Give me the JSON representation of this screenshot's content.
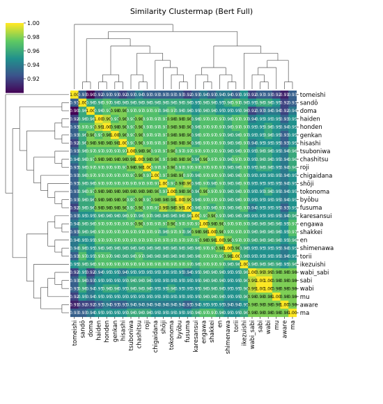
{
  "chart_data": {
    "type": "heatmap",
    "title": "Similarity Clustermap (Bert Full)",
    "labels": [
      "tomeishi",
      "sandō",
      "doma",
      "haiden",
      "honden",
      "genkan",
      "hisashi",
      "tsuboniwa",
      "chashitsu",
      "roji",
      "chigaidana",
      "shōji",
      "tokonoma",
      "byōbu",
      "fusuma",
      "karesansui",
      "engawa",
      "shakkei",
      "en",
      "shimenawa",
      "torii",
      "ikezuishi",
      "wabi_sabi",
      "sabi",
      "wabi",
      "mu",
      "aware",
      "ma"
    ],
    "colorbar": {
      "min": 0.9,
      "max": 1.0,
      "ticks": [
        "0.92",
        "0.94",
        "0.96",
        "0.98",
        "1.00"
      ],
      "colors": [
        "#440154",
        "#3b528b",
        "#21918c",
        "#5ec962",
        "#fde725"
      ]
    },
    "values": [
      [
        1.0,
        0.93,
        0.9,
        0.92,
        0.93,
        0.93,
        0.92,
        0.93,
        0.94,
        0.93,
        0.93,
        0.93,
        0.93,
        0.93,
        0.92,
        0.93,
        0.94,
        0.93,
        0.94,
        0.94,
        0.93,
        0.95,
        0.92,
        0.93,
        0.93,
        0.92,
        0.91,
        0.93
      ],
      [
        0.93,
        1.0,
        0.96,
        0.96,
        0.97,
        0.96,
        0.96,
        0.96,
        0.96,
        0.96,
        0.96,
        0.96,
        0.96,
        0.96,
        0.96,
        0.95,
        0.96,
        0.96,
        0.95,
        0.96,
        0.97,
        0.96,
        0.95,
        0.96,
        0.96,
        0.95,
        0.92,
        0.93
      ],
      [
        0.9,
        0.96,
        1.0,
        0.96,
        0.97,
        0.98,
        0.98,
        0.97,
        0.97,
        0.97,
        0.97,
        0.96,
        0.97,
        0.96,
        0.96,
        0.95,
        0.96,
        0.96,
        0.95,
        0.95,
        0.95,
        0.96,
        0.92,
        0.93,
        0.94,
        0.94,
        0.92,
        0.94
      ],
      [
        0.92,
        0.96,
        0.96,
        1.0,
        0.99,
        0.97,
        0.98,
        0.97,
        0.98,
        0.97,
        0.97,
        0.97,
        0.98,
        0.98,
        0.98,
        0.96,
        0.97,
        0.97,
        0.97,
        0.96,
        0.97,
        0.97,
        0.94,
        0.95,
        0.95,
        0.95,
        0.93,
        0.95
      ],
      [
        0.93,
        0.97,
        0.97,
        0.99,
        1.0,
        0.98,
        0.98,
        0.97,
        0.98,
        0.97,
        0.97,
        0.97,
        0.98,
        0.98,
        0.98,
        0.96,
        0.97,
        0.97,
        0.97,
        0.96,
        0.97,
        0.97,
        0.95,
        0.95,
        0.96,
        0.95,
        0.94,
        0.95
      ],
      [
        0.93,
        0.96,
        0.98,
        0.97,
        0.98,
        1.0,
        0.98,
        0.97,
        0.98,
        0.97,
        0.97,
        0.97,
        0.98,
        0.98,
        0.98,
        0.96,
        0.97,
        0.97,
        0.97,
        0.96,
        0.96,
        0.97,
        0.95,
        0.95,
        0.96,
        0.95,
        0.93,
        0.95
      ],
      [
        0.92,
        0.96,
        0.98,
        0.98,
        0.98,
        0.98,
        1.0,
        0.97,
        0.98,
        0.97,
        0.97,
        0.97,
        0.98,
        0.98,
        0.98,
        0.96,
        0.97,
        0.97,
        0.97,
        0.96,
        0.96,
        0.97,
        0.94,
        0.95,
        0.95,
        0.95,
        0.93,
        0.95
      ],
      [
        0.93,
        0.96,
        0.97,
        0.97,
        0.97,
        0.97,
        0.97,
        1.0,
        0.98,
        0.98,
        0.97,
        0.97,
        0.98,
        0.97,
        0.97,
        0.97,
        0.97,
        0.97,
        0.97,
        0.96,
        0.96,
        0.97,
        0.95,
        0.96,
        0.96,
        0.95,
        0.94,
        0.96
      ],
      [
        0.94,
        0.96,
        0.97,
        0.98,
        0.98,
        0.98,
        0.98,
        0.98,
        1.0,
        0.98,
        0.98,
        0.97,
        0.98,
        0.98,
        0.98,
        0.96,
        0.98,
        0.97,
        0.97,
        0.96,
        0.97,
        0.97,
        0.95,
        0.96,
        0.96,
        0.95,
        0.94,
        0.96
      ],
      [
        0.93,
        0.96,
        0.97,
        0.97,
        0.97,
        0.97,
        0.97,
        0.98,
        0.98,
        1.0,
        0.97,
        0.97,
        0.98,
        0.97,
        0.97,
        0.97,
        0.97,
        0.97,
        0.97,
        0.96,
        0.96,
        0.97,
        0.95,
        0.96,
        0.96,
        0.95,
        0.94,
        0.96
      ],
      [
        0.93,
        0.96,
        0.97,
        0.97,
        0.97,
        0.97,
        0.97,
        0.97,
        0.98,
        0.97,
        1.0,
        0.97,
        0.98,
        0.98,
        0.97,
        0.96,
        0.97,
        0.97,
        0.97,
        0.96,
        0.96,
        0.97,
        0.95,
        0.95,
        0.95,
        0.95,
        0.94,
        0.95
      ],
      [
        0.93,
        0.96,
        0.96,
        0.97,
        0.97,
        0.97,
        0.97,
        0.97,
        0.97,
        0.97,
        0.97,
        1.0,
        0.97,
        0.98,
        0.99,
        0.96,
        0.97,
        0.96,
        0.97,
        0.96,
        0.96,
        0.97,
        0.95,
        0.95,
        0.95,
        0.95,
        0.94,
        0.95
      ],
      [
        0.93,
        0.96,
        0.97,
        0.98,
        0.98,
        0.98,
        0.98,
        0.98,
        0.98,
        0.98,
        0.98,
        0.97,
        1.0,
        0.98,
        0.98,
        0.96,
        0.98,
        0.97,
        0.97,
        0.96,
        0.96,
        0.97,
        0.95,
        0.95,
        0.96,
        0.95,
        0.94,
        0.95
      ],
      [
        0.93,
        0.96,
        0.96,
        0.98,
        0.98,
        0.98,
        0.98,
        0.97,
        0.98,
        0.97,
        0.98,
        0.98,
        0.98,
        1.0,
        0.99,
        0.96,
        0.97,
        0.97,
        0.97,
        0.96,
        0.96,
        0.97,
        0.95,
        0.95,
        0.95,
        0.95,
        0.94,
        0.95
      ],
      [
        0.92,
        0.96,
        0.96,
        0.98,
        0.98,
        0.98,
        0.98,
        0.97,
        0.98,
        0.97,
        0.97,
        0.99,
        0.98,
        0.99,
        1.0,
        0.96,
        0.97,
        0.96,
        0.97,
        0.96,
        0.96,
        0.97,
        0.94,
        0.95,
        0.95,
        0.95,
        0.93,
        0.95
      ],
      [
        0.93,
        0.95,
        0.95,
        0.96,
        0.96,
        0.96,
        0.96,
        0.97,
        0.96,
        0.97,
        0.96,
        0.96,
        0.96,
        0.96,
        0.96,
        1.0,
        0.97,
        0.98,
        0.97,
        0.96,
        0.96,
        0.96,
        0.95,
        0.95,
        0.95,
        0.95,
        0.94,
        0.96
      ],
      [
        0.94,
        0.96,
        0.96,
        0.97,
        0.97,
        0.97,
        0.97,
        0.97,
        0.98,
        0.97,
        0.97,
        0.97,
        0.98,
        0.97,
        0.97,
        0.97,
        1.0,
        0.98,
        0.98,
        0.97,
        0.97,
        0.97,
        0.96,
        0.96,
        0.96,
        0.96,
        0.95,
        0.97
      ],
      [
        0.93,
        0.96,
        0.96,
        0.97,
        0.97,
        0.97,
        0.97,
        0.97,
        0.97,
        0.97,
        0.97,
        0.96,
        0.97,
        0.97,
        0.96,
        0.98,
        0.98,
        1.0,
        0.98,
        0.97,
        0.97,
        0.97,
        0.96,
        0.96,
        0.96,
        0.96,
        0.95,
        0.97
      ],
      [
        0.94,
        0.95,
        0.95,
        0.97,
        0.97,
        0.97,
        0.97,
        0.97,
        0.97,
        0.97,
        0.97,
        0.97,
        0.97,
        0.97,
        0.97,
        0.97,
        0.98,
        0.98,
        1.0,
        0.98,
        0.97,
        0.97,
        0.96,
        0.96,
        0.96,
        0.96,
        0.95,
        0.96
      ],
      [
        0.94,
        0.96,
        0.95,
        0.96,
        0.96,
        0.96,
        0.96,
        0.96,
        0.96,
        0.96,
        0.96,
        0.96,
        0.96,
        0.96,
        0.96,
        0.96,
        0.97,
        0.97,
        0.98,
        1.0,
        0.98,
        0.96,
        0.95,
        0.95,
        0.95,
        0.95,
        0.94,
        0.95
      ],
      [
        0.93,
        0.97,
        0.95,
        0.97,
        0.97,
        0.96,
        0.96,
        0.96,
        0.97,
        0.96,
        0.96,
        0.96,
        0.96,
        0.96,
        0.96,
        0.96,
        0.97,
        0.97,
        0.97,
        0.98,
        1.0,
        0.96,
        0.95,
        0.95,
        0.95,
        0.95,
        0.94,
        0.95
      ],
      [
        0.95,
        0.96,
        0.96,
        0.97,
        0.97,
        0.97,
        0.97,
        0.97,
        0.97,
        0.97,
        0.97,
        0.97,
        0.97,
        0.97,
        0.97,
        0.96,
        0.97,
        0.97,
        0.97,
        0.96,
        0.96,
        1.0,
        0.96,
        0.96,
        0.96,
        0.96,
        0.95,
        0.96
      ],
      [
        0.92,
        0.95,
        0.92,
        0.94,
        0.95,
        0.95,
        0.94,
        0.95,
        0.95,
        0.95,
        0.95,
        0.95,
        0.95,
        0.95,
        0.94,
        0.95,
        0.96,
        0.96,
        0.96,
        0.95,
        0.95,
        0.96,
        1.0,
        0.99,
        0.99,
        0.98,
        0.98,
        0.98
      ],
      [
        0.93,
        0.96,
        0.93,
        0.95,
        0.95,
        0.95,
        0.95,
        0.96,
        0.96,
        0.96,
        0.95,
        0.95,
        0.95,
        0.95,
        0.95,
        0.95,
        0.96,
        0.96,
        0.96,
        0.95,
        0.95,
        0.96,
        0.99,
        1.0,
        1.0,
        0.98,
        0.98,
        0.98
      ],
      [
        0.93,
        0.96,
        0.94,
        0.95,
        0.96,
        0.96,
        0.95,
        0.96,
        0.96,
        0.96,
        0.95,
        0.95,
        0.96,
        0.95,
        0.95,
        0.95,
        0.96,
        0.96,
        0.96,
        0.95,
        0.95,
        0.96,
        0.99,
        1.0,
        1.0,
        0.98,
        0.98,
        0.98
      ],
      [
        0.92,
        0.95,
        0.94,
        0.95,
        0.95,
        0.95,
        0.95,
        0.95,
        0.95,
        0.95,
        0.95,
        0.95,
        0.95,
        0.95,
        0.95,
        0.95,
        0.96,
        0.96,
        0.96,
        0.95,
        0.95,
        0.96,
        0.98,
        0.98,
        0.98,
        1.0,
        0.98,
        0.98
      ],
      [
        0.91,
        0.92,
        0.92,
        0.93,
        0.94,
        0.93,
        0.93,
        0.94,
        0.94,
        0.94,
        0.94,
        0.94,
        0.94,
        0.94,
        0.93,
        0.94,
        0.95,
        0.95,
        0.95,
        0.94,
        0.94,
        0.95,
        0.98,
        0.98,
        0.98,
        0.98,
        1.0,
        0.98
      ],
      [
        0.93,
        0.93,
        0.94,
        0.95,
        0.95,
        0.95,
        0.95,
        0.96,
        0.96,
        0.96,
        0.95,
        0.95,
        0.95,
        0.95,
        0.95,
        0.96,
        0.97,
        0.97,
        0.96,
        0.95,
        0.95,
        0.96,
        0.98,
        0.98,
        0.98,
        0.98,
        0.98,
        1.0
      ]
    ]
  }
}
